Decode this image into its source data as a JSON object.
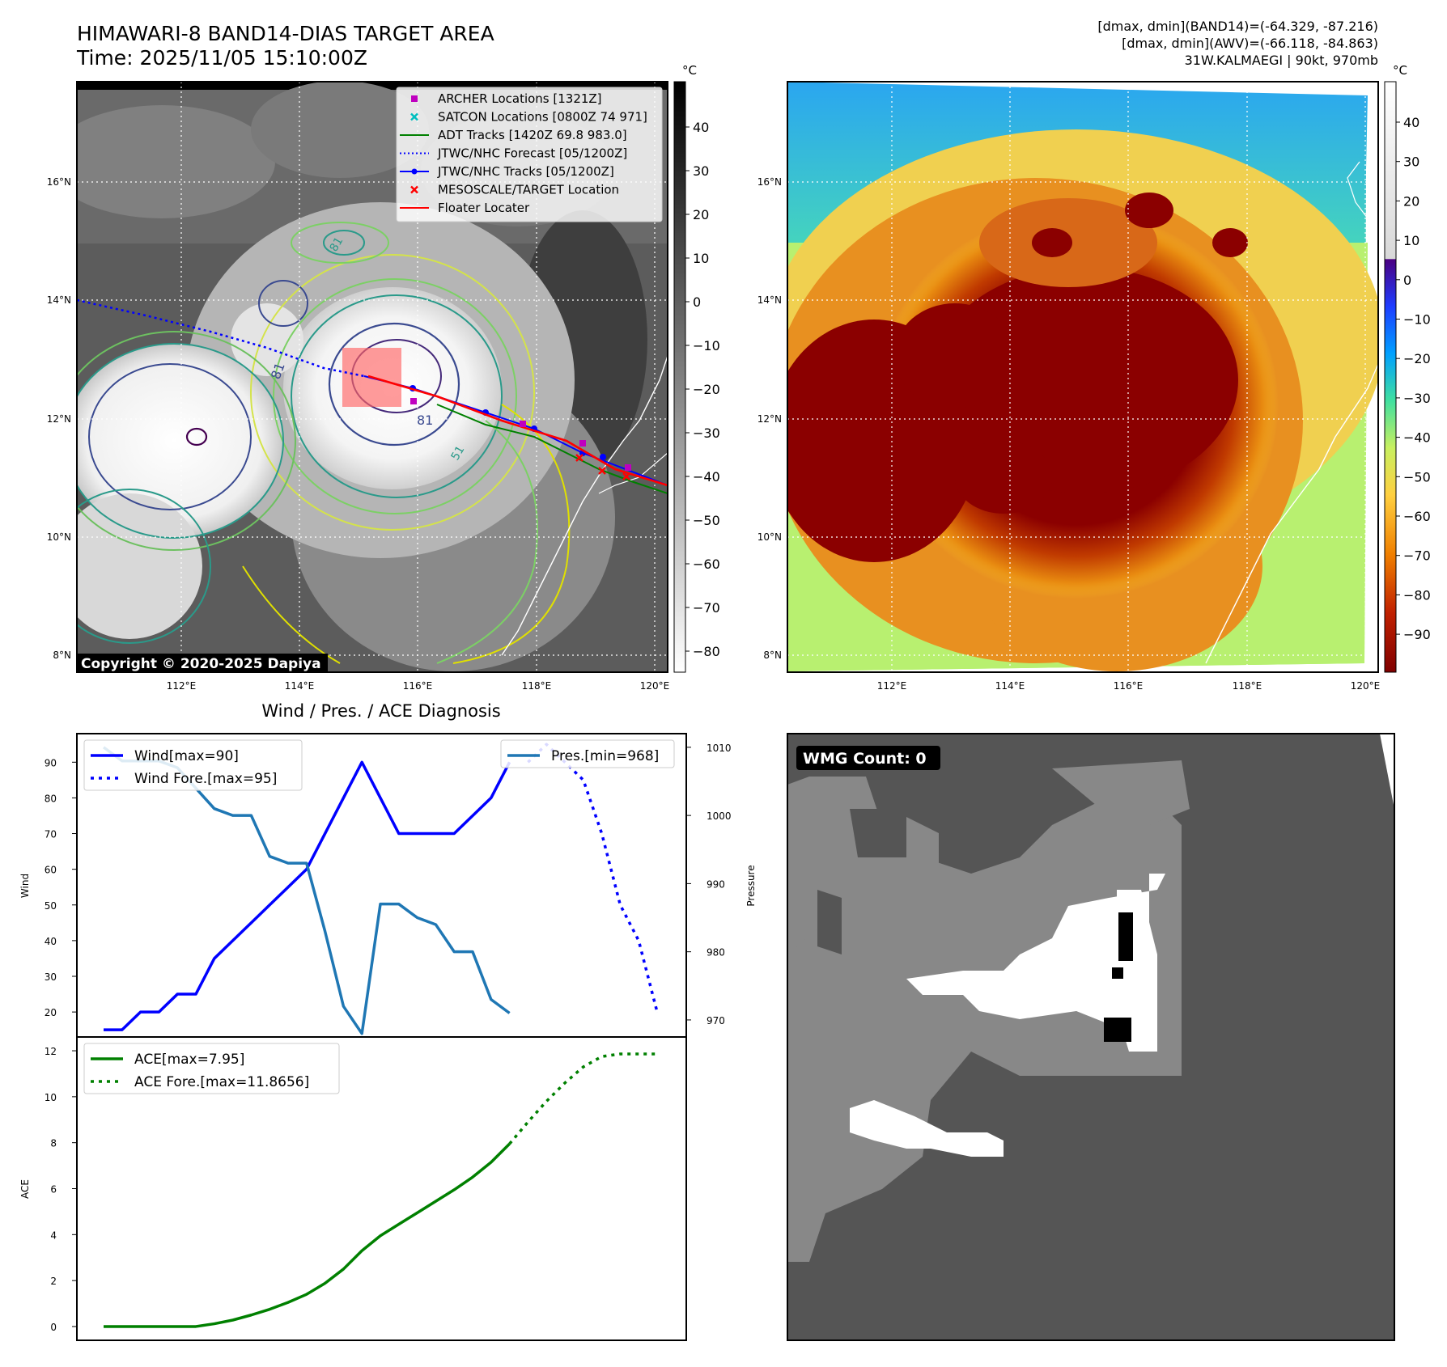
{
  "header": {
    "title_line1": "HIMAWARI-8 BAND14-DIAS TARGET AREA",
    "title_line2": "Time: 2025/11/05 15:10:00Z",
    "info_line1": "[dmax, dmin](BAND14)=(-64.329, -87.216)",
    "info_line2": "[dmax, dmin](AWV)=(-66.118, -84.863)",
    "info_line3": "31W.KALMAEGI | 90kt, 970mb"
  },
  "maps": {
    "lat_labels": [
      "16°N",
      "14°N",
      "12°N",
      "10°N",
      "8°N"
    ],
    "lon_labels": [
      "112°E",
      "114°E",
      "116°E",
      "118°E",
      "120°E"
    ],
    "copyright": "Copyright © 2020-2025 Dapiya",
    "gray_colorbar": {
      "unit": "°C",
      "ticks": [
        "40",
        "30",
        "20",
        "10",
        "0",
        "−10",
        "−20",
        "−30",
        "−40",
        "−50",
        "−60",
        "−70",
        "−80"
      ]
    },
    "color_colorbar": {
      "unit": "°C",
      "ticks": [
        "40",
        "30",
        "20",
        "10",
        "0",
        "−10",
        "−20",
        "−30",
        "−40",
        "−50",
        "−60",
        "−70",
        "−80",
        "−90"
      ]
    },
    "contour_labels": [
      "81",
      "81",
      "81",
      "51"
    ],
    "legend": [
      {
        "label": "ARCHER Locations [1321Z]",
        "color": "#bf00bf",
        "marker": "square"
      },
      {
        "label": "SATCON Locations [0800Z 74 971]",
        "color": "#00bfbf",
        "marker": "x"
      },
      {
        "label": "ADT Tracks [1420Z 69.8 983.0]",
        "color": "#008000",
        "marker": "line"
      },
      {
        "label": "JTWC/NHC Forecast [05/1200Z]",
        "color": "#0000ff",
        "marker": "dotted"
      },
      {
        "label": "JTWC/NHC Tracks [05/1200Z]",
        "color": "#0000ff",
        "marker": "line-dot"
      },
      {
        "label": "MESOSCALE/TARGET Location",
        "color": "#ff0000",
        "marker": "x"
      },
      {
        "label": "Floater Locater",
        "color": "#ff0000",
        "marker": "line"
      }
    ],
    "wmg_badge": "WMG Count: 0"
  },
  "chart_data": [
    {
      "type": "line",
      "title": "Wind / Pres. / ACE Diagnosis",
      "ylabel": "Wind",
      "y2label": "Pressure",
      "ylim": [
        13,
        98
      ],
      "y2lim": [
        967.5,
        1012
      ],
      "yticks": [
        "90",
        "80",
        "70",
        "60",
        "50",
        "40",
        "30",
        "20"
      ],
      "y2ticks": [
        "1010",
        "1000",
        "990",
        "980",
        "970"
      ],
      "series": [
        {
          "name": "Wind[max=90]",
          "axis": "left",
          "color": "#0000ff",
          "style": "solid",
          "x": [
            0,
            1,
            2,
            3,
            4,
            5,
            6,
            7,
            8,
            9,
            10,
            11,
            12,
            13,
            14,
            15,
            16,
            17,
            18,
            19,
            20,
            21,
            22,
            23
          ],
          "values": [
            15,
            15,
            20,
            20,
            25,
            25,
            35,
            40,
            45,
            50,
            55,
            60,
            70,
            80,
            90,
            80,
            70,
            70,
            70,
            70,
            75,
            80,
            90,
            null
          ]
        },
        {
          "name": "Wind Fore.[max=95]",
          "axis": "left",
          "color": "#0000ff",
          "style": "dotted",
          "x": [
            23,
            24,
            25,
            26,
            27,
            28,
            29,
            30
          ],
          "values": [
            90,
            95,
            90,
            85,
            70,
            50,
            40,
            20
          ]
        },
        {
          "name": "Pres.[min=968]",
          "axis": "right",
          "color": "#1f77b4",
          "style": "solid",
          "x": [
            0,
            1,
            2,
            3,
            4,
            5,
            6,
            7,
            8,
            9,
            10,
            11,
            12,
            13,
            14,
            15,
            16,
            17,
            18,
            19,
            20,
            21,
            22,
            23
          ],
          "values": [
            1010,
            1008,
            1008,
            1008,
            1007,
            1004,
            1001,
            1000,
            1000,
            994,
            993,
            993,
            983,
            972,
            968,
            987,
            987,
            985,
            984,
            980,
            980,
            973,
            971,
            null
          ]
        }
      ]
    },
    {
      "type": "line",
      "ylabel": "ACE",
      "ylim": [
        -0.6,
        12.6
      ],
      "yticks": [
        "12",
        "10",
        "8",
        "6",
        "4",
        "2",
        "0"
      ],
      "series": [
        {
          "name": "ACE[max=7.95]",
          "color": "#008000",
          "style": "solid",
          "x": [
            0,
            1,
            2,
            3,
            4,
            5,
            6,
            7,
            8,
            9,
            10,
            11,
            12,
            13,
            14,
            15,
            16,
            17,
            18,
            19,
            20,
            21,
            22,
            23
          ],
          "values": [
            0,
            0,
            0,
            0,
            0,
            0,
            0.12,
            0.28,
            0.5,
            0.75,
            1.05,
            1.4,
            1.88,
            2.5,
            3.3,
            3.95,
            4.45,
            4.95,
            5.45,
            5.95,
            6.5,
            7.15,
            7.95,
            null
          ]
        },
        {
          "name": "ACE Fore.[max=11.8656]",
          "color": "#008000",
          "style": "dotted",
          "x": [
            22,
            23,
            24,
            25,
            26,
            27,
            28,
            29,
            30
          ],
          "values": [
            7.95,
            8.9,
            9.8,
            10.6,
            11.3,
            11.75,
            11.86,
            11.86,
            11.86
          ]
        }
      ]
    }
  ]
}
